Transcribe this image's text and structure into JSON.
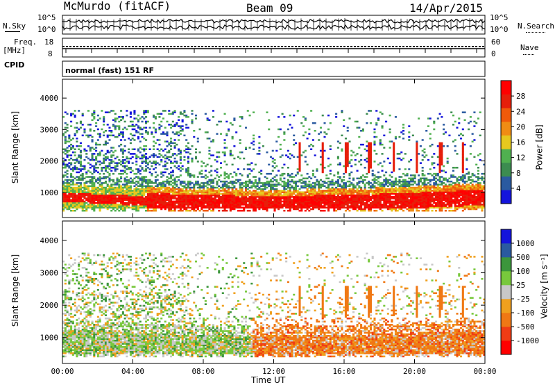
{
  "header": {
    "station": "McMurdo (fitACF)",
    "beam": "Beam 09",
    "date": "14/Apr/2015"
  },
  "top_panels": {
    "nsky_label": "N.Sky",
    "nsearch_label": "N.Search",
    "nsky_ticks": [
      "10^5",
      "10^0"
    ],
    "nsearch_ticks": [
      "10^5",
      "10^0"
    ],
    "freq_label_1": "Freq.",
    "freq_label_2": "[MHz]",
    "freq_ticks": [
      "18",
      "8"
    ],
    "nave_label": "Nave",
    "nave_ticks": [
      "60",
      "0"
    ],
    "cpid_label": "CPID",
    "cpid_value": "normal (fast) 151 RF"
  },
  "colors": {
    "power": [
      "#1414dc",
      "#2a5aa0",
      "#3c8c50",
      "#50b050",
      "#e6c81e",
      "#f08c14",
      "#f05a0a",
      "#e61e0a",
      "#ff0000"
    ],
    "velocity": [
      "#ff0000",
      "#f03c14",
      "#f07814",
      "#f0a01e",
      "#c8c8c8",
      "#78c83c",
      "#3c963c",
      "#2a5aa0",
      "#1414dc"
    ]
  },
  "chart_data": [
    {
      "type": "heatmap",
      "name": "power",
      "ylabel": "Slant Range [km]",
      "xlabel": "",
      "ylim": [
        200,
        4600
      ],
      "yticks": [
        "1000",
        "2000",
        "3000",
        "4000"
      ],
      "x": [
        "00:00",
        "04:00",
        "08:00",
        "12:00",
        "16:00",
        "20:00",
        "00:00"
      ],
      "colorbar_label": "Power [dB]",
      "colorbar_ticks": [
        "4",
        "8",
        "12",
        "16",
        "20",
        "24",
        "28"
      ],
      "clim": [
        0,
        32
      ]
    },
    {
      "type": "heatmap",
      "name": "velocity",
      "ylabel": "Slant Range [km]",
      "xlabel": "Time UT",
      "ylim": [
        200,
        4600
      ],
      "yticks": [
        "1000",
        "2000",
        "3000",
        "4000"
      ],
      "x": [
        "00:00",
        "04:00",
        "08:00",
        "12:00",
        "16:00",
        "20:00",
        "00:00"
      ],
      "xtick_labels": [
        "00:00",
        "04:00",
        "08:00",
        "12:00",
        "16:00",
        "20:00",
        "00:00"
      ],
      "colorbar_label": "Velocity [m s⁻¹]",
      "colorbar_ticks": [
        "1000",
        "500",
        "100",
        "25",
        "-25",
        "-100",
        "-500",
        "-1000"
      ]
    }
  ]
}
